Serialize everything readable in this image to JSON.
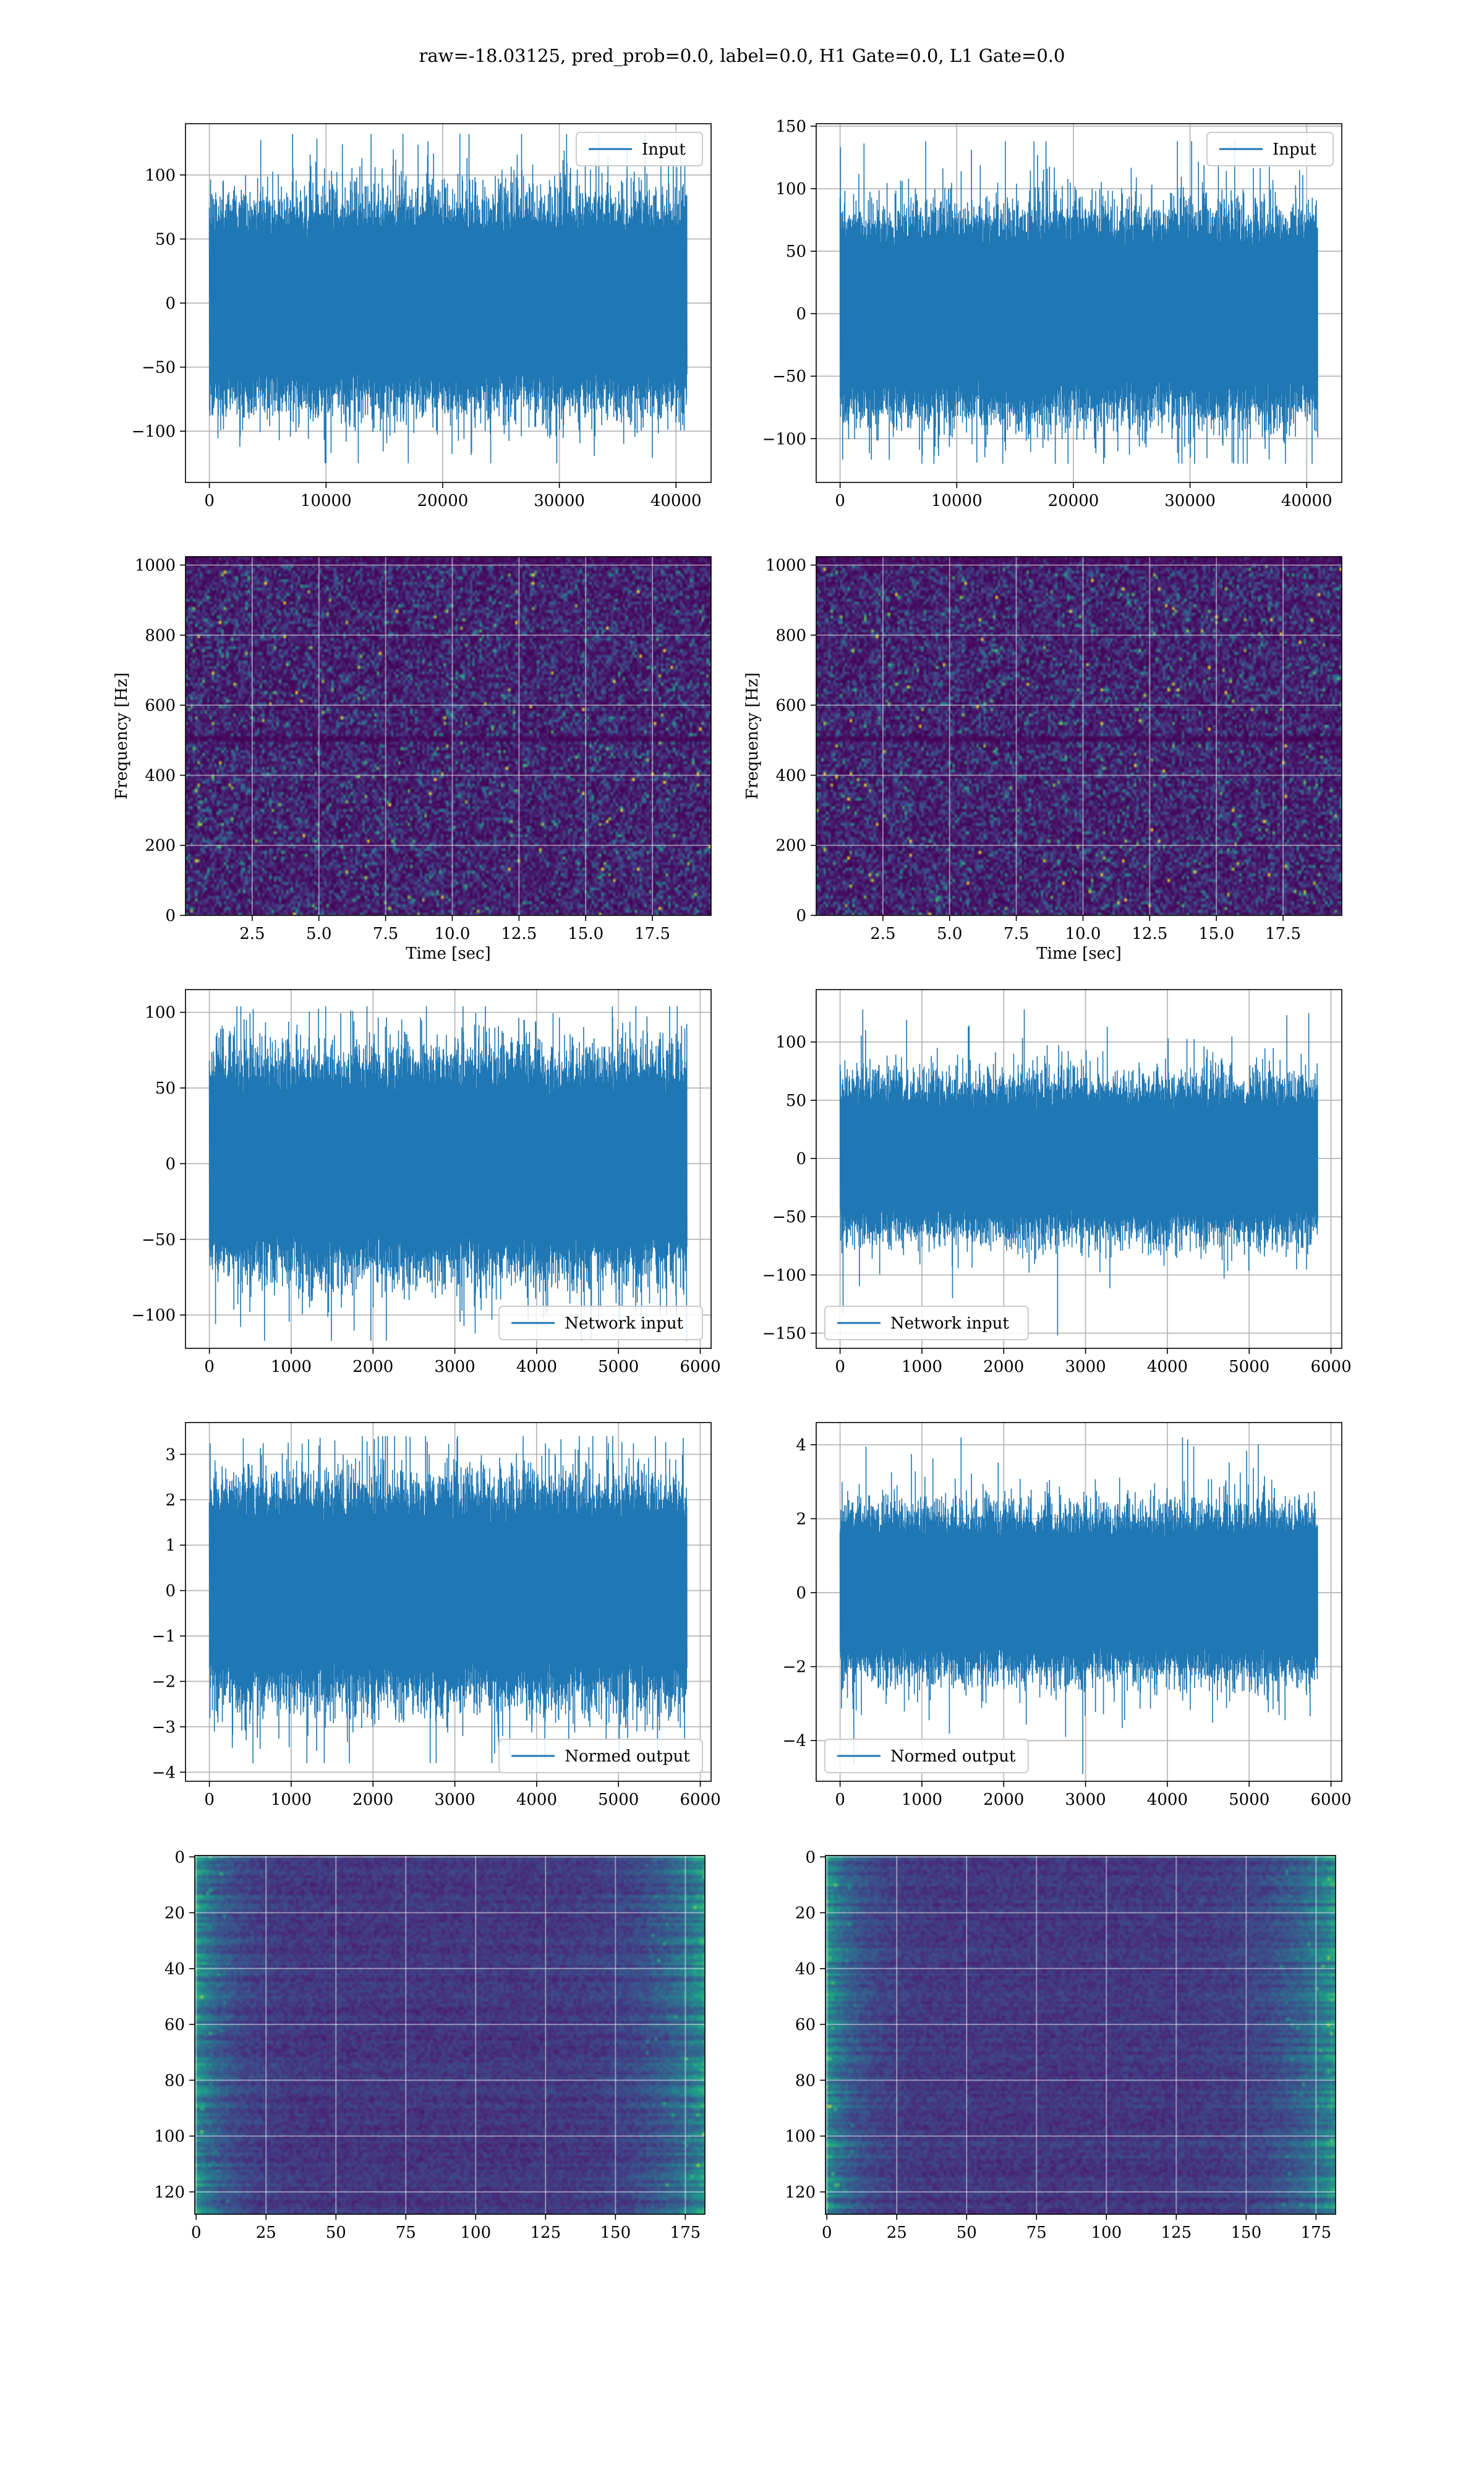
{
  "figure": {
    "title": "raw=-18.03125, pred_prob=0.0, label=0.0, H1 Gate=0.0, L1 Gate=0.0",
    "colors": {
      "line": "#1f77b4",
      "grid": "#b0b0b0",
      "viridis_low": "#440154",
      "viridis_high": "#fde725"
    }
  },
  "chart_data": [
    {
      "id": "h1-input",
      "type": "line",
      "title": "",
      "xlabel": "",
      "ylabel": "",
      "legend": {
        "label": "Input",
        "placement": "upper right"
      },
      "xlim": [
        -2048,
        43008
      ],
      "ylim": [
        -140,
        140
      ],
      "xticks": [
        0,
        10000,
        20000,
        30000,
        40000
      ],
      "yticks": [
        -100,
        -50,
        0,
        50,
        100
      ],
      "series": [
        {
          "name": "Input",
          "x_range": [
            0,
            40960
          ],
          "n_points": 40960,
          "typical_envelope": [
            -55,
            55
          ],
          "peak_min": -125,
          "peak_max": 132
        }
      ],
      "grid": true
    },
    {
      "id": "l1-input",
      "type": "line",
      "title": "",
      "xlabel": "",
      "ylabel": "",
      "legend": {
        "label": "Input",
        "placement": "upper right"
      },
      "xlim": [
        -2048,
        43008
      ],
      "ylim": [
        -135,
        152
      ],
      "xticks": [
        0,
        10000,
        20000,
        30000,
        40000
      ],
      "yticks": [
        -100,
        -50,
        0,
        50,
        100,
        150
      ],
      "series": [
        {
          "name": "Input",
          "x_range": [
            0,
            40960
          ],
          "n_points": 40960,
          "typical_envelope": [
            -55,
            55
          ],
          "peak_min": -120,
          "peak_max": 138
        }
      ],
      "grid": true
    },
    {
      "id": "h1-spectrogram",
      "type": "heatmap",
      "title": "",
      "xlabel": "Time [sec]",
      "ylabel": "Frequency [Hz]",
      "xlim": [
        0,
        19.7
      ],
      "ylim": [
        0,
        1024
      ],
      "xticks": [
        "2.5",
        "5.0",
        "7.5",
        "10.0",
        "12.5",
        "15.0",
        "17.5"
      ],
      "xtick_values": [
        2.5,
        5.0,
        7.5,
        10.0,
        12.5,
        15.0,
        17.5
      ],
      "yticks": [
        0,
        200,
        400,
        600,
        800,
        1000
      ],
      "colormap": "viridis",
      "description_level": "mostly low power noise",
      "grid": true
    },
    {
      "id": "l1-spectrogram",
      "type": "heatmap",
      "title": "",
      "xlabel": "Time [sec]",
      "ylabel": "Frequency [Hz]",
      "xlim": [
        0,
        19.7
      ],
      "ylim": [
        0,
        1024
      ],
      "xticks": [
        "2.5",
        "5.0",
        "7.5",
        "10.0",
        "12.5",
        "15.0",
        "17.5"
      ],
      "xtick_values": [
        2.5,
        5.0,
        7.5,
        10.0,
        12.5,
        15.0,
        17.5
      ],
      "yticks": [
        0,
        200,
        400,
        600,
        800,
        1000
      ],
      "colormap": "viridis",
      "grid": true
    },
    {
      "id": "h1-network-input",
      "type": "line",
      "title": "",
      "xlabel": "",
      "ylabel": "",
      "legend": {
        "label": "Network input",
        "placement": "lower right"
      },
      "xlim": [
        -292,
        6132
      ],
      "ylim": [
        -122,
        115
      ],
      "xticks": [
        0,
        1000,
        2000,
        3000,
        4000,
        5000,
        6000
      ],
      "yticks": [
        -100,
        -50,
        0,
        50,
        100
      ],
      "series": [
        {
          "name": "Network input",
          "x_range": [
            0,
            5840
          ],
          "n_points": 5840,
          "typical_envelope": [
            -48,
            48
          ],
          "peak_min": -117,
          "peak_max": 104
        }
      ],
      "grid": true
    },
    {
      "id": "l1-network-input",
      "type": "line",
      "title": "",
      "xlabel": "",
      "ylabel": "",
      "legend": {
        "label": "Network input",
        "placement": "lower left"
      },
      "xlim": [
        -292,
        6132
      ],
      "ylim": [
        -163,
        145
      ],
      "xticks": [
        0,
        1000,
        2000,
        3000,
        4000,
        5000,
        6000
      ],
      "yticks": [
        -150,
        -100,
        -50,
        0,
        50,
        100
      ],
      "series": [
        {
          "name": "Network input",
          "x_range": [
            0,
            5840
          ],
          "n_points": 5840,
          "typical_envelope": [
            -45,
            45
          ],
          "peak_min": -152,
          "peak_max": 128
        }
      ],
      "grid": true
    },
    {
      "id": "h1-normed-output",
      "type": "line",
      "title": "",
      "xlabel": "",
      "ylabel": "",
      "legend": {
        "label": "Normed output",
        "placement": "lower right"
      },
      "xlim": [
        -292,
        6132
      ],
      "ylim": [
        -4.2,
        3.7
      ],
      "xticks": [
        0,
        1000,
        2000,
        3000,
        4000,
        5000,
        6000
      ],
      "yticks": [
        -4,
        -3,
        -2,
        -1,
        0,
        1,
        2,
        3
      ],
      "series": [
        {
          "name": "Normed output",
          "x_range": [
            0,
            5840
          ],
          "n_points": 5840,
          "typical_envelope": [
            -1.6,
            1.6
          ],
          "peak_min": -3.8,
          "peak_max": 3.4
        }
      ],
      "grid": true
    },
    {
      "id": "l1-normed-output",
      "type": "line",
      "title": "",
      "xlabel": "",
      "ylabel": "",
      "legend": {
        "label": "Normed output",
        "placement": "lower left"
      },
      "xlim": [
        -292,
        6132
      ],
      "ylim": [
        -5.1,
        4.6
      ],
      "xticks": [
        0,
        1000,
        2000,
        3000,
        4000,
        5000,
        6000
      ],
      "yticks": [
        -4,
        -2,
        0,
        2,
        4
      ],
      "series": [
        {
          "name": "Normed output",
          "x_range": [
            0,
            5840
          ],
          "n_points": 5840,
          "typical_envelope": [
            -1.5,
            1.5
          ],
          "peak_min": -4.9,
          "peak_max": 4.2
        }
      ],
      "grid": true
    },
    {
      "id": "h1-feature-map",
      "type": "heatmap",
      "title": "",
      "xlabel": "",
      "ylabel": "",
      "xlim": [
        -0.5,
        182
      ],
      "ylim": [
        128,
        -0.5
      ],
      "xticks": [
        0,
        25,
        50,
        75,
        100,
        125,
        150,
        175
      ],
      "yticks": [
        0,
        20,
        40,
        60,
        80,
        100,
        120
      ],
      "shape": [
        128,
        182
      ],
      "colormap": "viridis",
      "grid": true
    },
    {
      "id": "l1-feature-map",
      "type": "heatmap",
      "title": "",
      "xlabel": "",
      "ylabel": "",
      "xlim": [
        -0.5,
        182
      ],
      "ylim": [
        128,
        -0.5
      ],
      "xticks": [
        0,
        25,
        50,
        75,
        100,
        125,
        150,
        175
      ],
      "yticks": [
        0,
        20,
        40,
        60,
        80,
        100,
        120
      ],
      "shape": [
        128,
        182
      ],
      "colormap": "viridis",
      "grid": true
    }
  ]
}
